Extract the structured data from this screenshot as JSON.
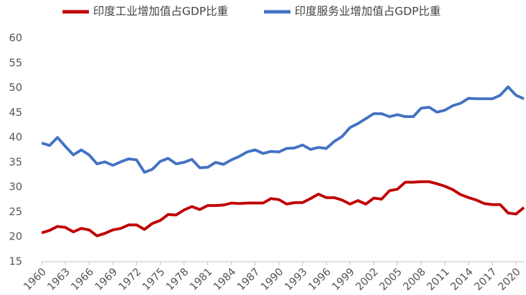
{
  "chart_data": {
    "type": "line",
    "x": [
      1960,
      1961,
      1962,
      1963,
      1964,
      1965,
      1966,
      1967,
      1968,
      1969,
      1970,
      1971,
      1972,
      1973,
      1974,
      1975,
      1976,
      1977,
      1978,
      1979,
      1980,
      1981,
      1982,
      1983,
      1984,
      1985,
      1986,
      1987,
      1988,
      1989,
      1990,
      1991,
      1992,
      1993,
      1994,
      1995,
      1996,
      1997,
      1998,
      1999,
      2000,
      2001,
      2002,
      2003,
      2004,
      2005,
      2006,
      2007,
      2008,
      2009,
      2010,
      2011,
      2012,
      2013,
      2014,
      2015,
      2016,
      2017,
      2018,
      2019,
      2020,
      2021
    ],
    "series": [
      {
        "name": "印度工业增加值占GDP比重",
        "color": "#c00000",
        "values": [
          20.8,
          21.3,
          22.1,
          21.9,
          21.0,
          21.7,
          21.4,
          20.2,
          20.7,
          21.4,
          21.7,
          22.4,
          22.4,
          21.5,
          22.7,
          23.3,
          24.5,
          24.4,
          25.4,
          26.1,
          25.5,
          26.3,
          26.3,
          26.4,
          26.8,
          26.7,
          26.8,
          26.8,
          26.8,
          27.7,
          27.5,
          26.6,
          26.9,
          26.9,
          27.7,
          28.6,
          27.9,
          27.9,
          27.4,
          26.6,
          27.3,
          26.6,
          27.8,
          27.6,
          29.3,
          29.6,
          31.0,
          31.0,
          31.1,
          31.1,
          30.7,
          30.2,
          29.5,
          28.5,
          27.9,
          27.4,
          26.7,
          26.5,
          26.5,
          24.8,
          24.6,
          25.9
        ]
      },
      {
        "name": "印度服务业增加值占GDP比重",
        "color": "#4472c4",
        "values": [
          38.9,
          38.4,
          40.0,
          38.2,
          36.5,
          37.5,
          36.5,
          34.7,
          35.1,
          34.4,
          35.1,
          35.7,
          35.5,
          33.0,
          33.6,
          35.2,
          35.8,
          34.7,
          35.0,
          35.6,
          33.9,
          34.0,
          35.0,
          34.6,
          35.5,
          36.2,
          37.1,
          37.5,
          36.8,
          37.2,
          37.1,
          37.8,
          37.9,
          38.5,
          37.6,
          38.0,
          37.8,
          39.2,
          40.2,
          42.0,
          42.8,
          43.8,
          44.8,
          44.8,
          44.2,
          44.6,
          44.2,
          44.2,
          45.9,
          46.1,
          45.1,
          45.5,
          46.4,
          46.9,
          47.9,
          47.8,
          47.8,
          47.8,
          48.5,
          50.2,
          48.5,
          47.8
        ]
      }
    ],
    "xlim": [
      1960,
      2021
    ],
    "xticks": [
      1960,
      1963,
      1966,
      1969,
      1972,
      1975,
      1978,
      1981,
      1984,
      1987,
      1990,
      1993,
      1996,
      1999,
      2002,
      2005,
      2008,
      2011,
      2014,
      2017,
      2020
    ],
    "ylim": [
      15,
      60
    ],
    "yticks": [
      15,
      20,
      25,
      30,
      35,
      40,
      45,
      50,
      55,
      60
    ],
    "grid": false
  }
}
